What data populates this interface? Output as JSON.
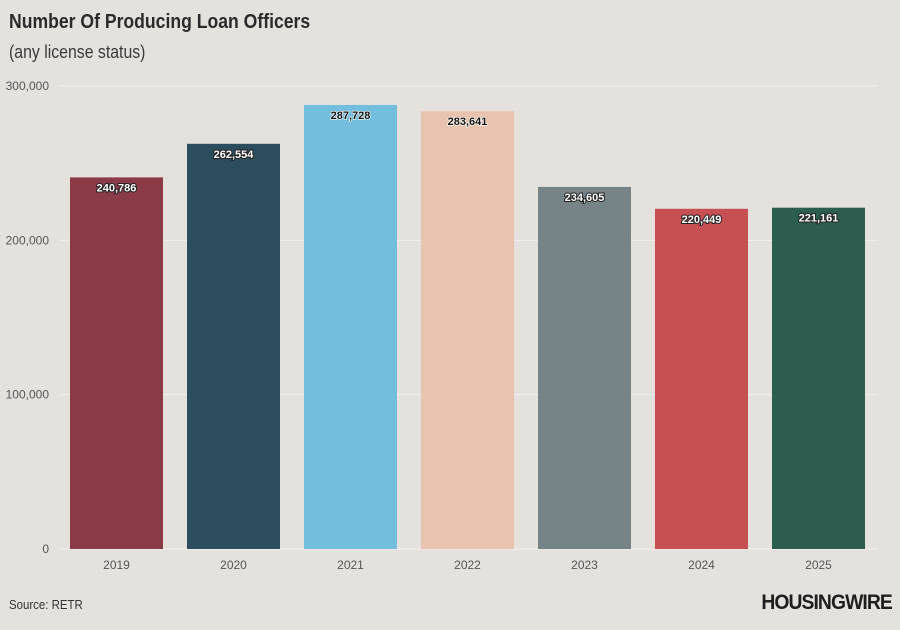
{
  "chart_data": {
    "type": "bar",
    "title": "Number Of Producing Loan Officers",
    "subtitle": "(any license status)",
    "categories": [
      "2019",
      "2020",
      "2021",
      "2022",
      "2023",
      "2024",
      "2025"
    ],
    "values": [
      240786,
      262554,
      287728,
      283641,
      234605,
      220449,
      221161
    ],
    "data_labels": [
      "240,786",
      "262,554",
      "287,728",
      "283,641",
      "234,605",
      "220,449",
      "221,161"
    ],
    "colors": [
      "#8b3a48",
      "#2b4d5d",
      "#74bedd",
      "#e8c4b0",
      "#768387",
      "#c65052",
      "#2c5e50"
    ],
    "label_colors": [
      "#ffffff",
      "#ffffff",
      "#111111",
      "#111111",
      "#ffffff",
      "#ffffff",
      "#ffffff"
    ],
    "ylim": [
      0,
      300000
    ],
    "yticks": [
      0,
      100000,
      200000,
      300000
    ],
    "ytick_labels": [
      "0",
      "100,000",
      "200,000",
      "300,000"
    ],
    "xlabel": "",
    "ylabel": "",
    "grid": true,
    "legend": "none"
  },
  "footer": {
    "source": "Source: RETR",
    "logo": "HOUSINGWIRE"
  }
}
